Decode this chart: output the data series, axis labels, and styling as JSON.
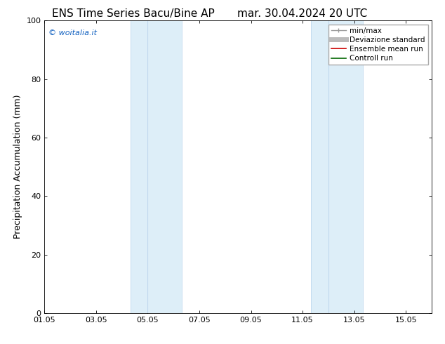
{
  "title_left": "ENS Time Series Bacu/Bine AP",
  "title_right": "mar. 30.04.2024 20 UTC",
  "ylabel": "Precipitation Accumulation (mm)",
  "ylim": [
    0,
    100
  ],
  "yticks": [
    0,
    20,
    40,
    60,
    80,
    100
  ],
  "xtick_labels": [
    "01.05",
    "03.05",
    "05.05",
    "07.05",
    "09.05",
    "11.05",
    "13.05",
    "15.05"
  ],
  "xtick_positions": [
    0,
    2,
    4,
    6,
    8,
    10,
    12,
    14
  ],
  "xlim": [
    0,
    15
  ],
  "shaded_bands": [
    {
      "x_start": 3.33,
      "x_end": 4.0,
      "sub": true
    },
    {
      "x_start": 4.0,
      "x_end": 5.33,
      "sub": false
    },
    {
      "x_start": 10.33,
      "x_end": 11.0,
      "sub": true
    },
    {
      "x_start": 11.0,
      "x_end": 12.33,
      "sub": false
    }
  ],
  "band_color": "#ddeef8",
  "band_border_color": "#c0d8ee",
  "watermark_text": "© woitalia.it",
  "watermark_color": "#1060C0",
  "legend_entries": [
    {
      "label": "min/max",
      "color": "#999999",
      "lw": 1.0
    },
    {
      "label": "Deviazione standard",
      "color": "#bbbbbb",
      "lw": 5
    },
    {
      "label": "Ensemble mean run",
      "color": "#cc0000",
      "lw": 1.2
    },
    {
      "label": "Controll run",
      "color": "#006600",
      "lw": 1.2
    }
  ],
  "bg_color": "#ffffff",
  "title_fontsize": 11,
  "axis_label_fontsize": 9,
  "tick_fontsize": 8,
  "legend_fontsize": 7.5
}
